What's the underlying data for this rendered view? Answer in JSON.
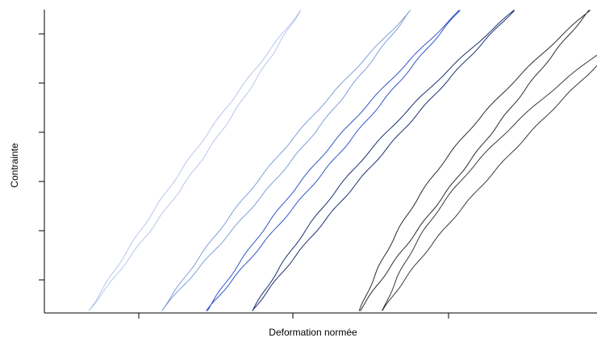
{
  "chart_data": {
    "type": "line",
    "title": "",
    "xlabel": "Deformation normée",
    "ylabel": "Contrainte",
    "xlim": [
      0,
      1
    ],
    "ylim": [
      0,
      1
    ],
    "x_tick_count": 3,
    "y_tick_count": 6,
    "tick_labels_shown": false,
    "grid": false,
    "legend": "none",
    "series": [
      {
        "color": "#b7c6ea",
        "loading": {
          "x0": 0.068,
          "x1": 0.462,
          "curvature": 0.0
        },
        "hysteresis_width": 0.012
      },
      {
        "color": "#7f9fd9",
        "loading": {
          "x0": 0.203,
          "x1": 0.668,
          "curvature": 0.05
        },
        "hysteresis_width": 0.016
      },
      {
        "color": "#2f56c7",
        "loading": {
          "x0": 0.288,
          "x1": 0.759,
          "curvature": 0.12
        },
        "hysteresis_width": 0.014
      },
      {
        "color": "#1b2f6e",
        "loading": {
          "x0": 0.373,
          "x1": 0.86,
          "curvature": 0.22
        },
        "hysteresis_width": 0.014
      },
      {
        "color": "#2a2a33",
        "loading": {
          "x0": 0.573,
          "x1": 1.001,
          "curvature": 0.3
        },
        "hysteresis_width": 0.024
      },
      {
        "color": "#3a3a3a",
        "loading": {
          "x0": 0.616,
          "x1": 1.128,
          "curvature": 0.42
        },
        "hysteresis_width": 0.024
      }
    ]
  }
}
